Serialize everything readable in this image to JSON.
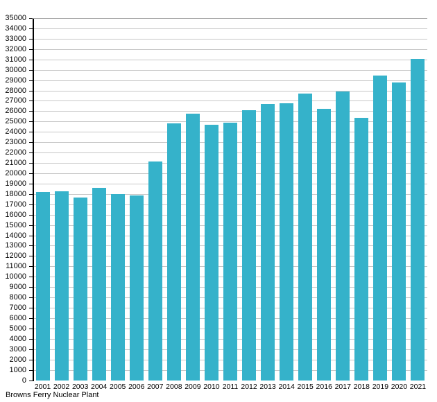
{
  "chart_data": {
    "type": "bar",
    "title": "Browns Ferry Nuclear Plant",
    "xlabel": "",
    "ylabel": "",
    "categories": [
      "2001",
      "2002",
      "2003",
      "2004",
      "2005",
      "2006",
      "2007",
      "2008",
      "2009",
      "2010",
      "2011",
      "2012",
      "2013",
      "2014",
      "2015",
      "2016",
      "2017",
      "2018",
      "2019",
      "2020",
      "2021"
    ],
    "values": [
      18200,
      18300,
      17700,
      18600,
      18050,
      17900,
      21150,
      24850,
      25800,
      24750,
      24900,
      26150,
      26700,
      26800,
      27750,
      26250,
      27900,
      25400,
      29500,
      28800,
      31100
    ],
    "ylim": [
      0,
      35000
    ],
    "ytick_step": 1000,
    "grid": true,
    "legend_position": "none",
    "bar_color": "#35b2ca",
    "grid_color": "#c6c6c6",
    "axis_color": "#000000",
    "background_color": "#ffffff"
  }
}
